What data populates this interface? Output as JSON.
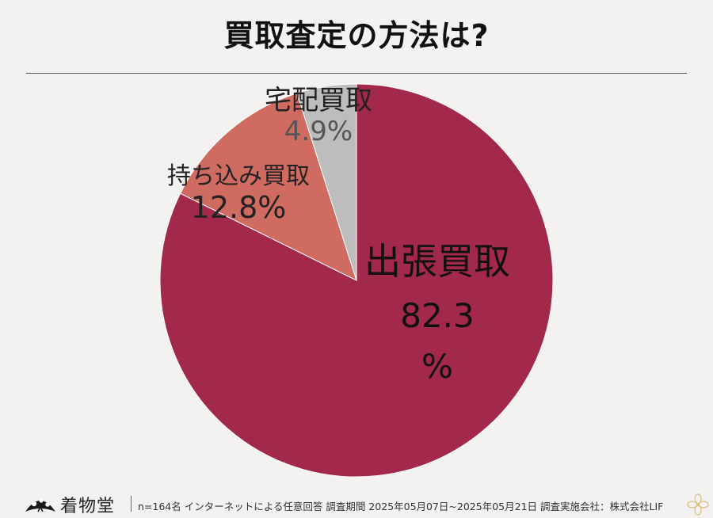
{
  "title": "買取査定の方法は?",
  "chart_data": {
    "type": "pie",
    "slices": [
      {
        "label": "出張買取",
        "value": 82.3,
        "display_value": "82.3",
        "unit": "%",
        "color": "#a3294a"
      },
      {
        "label": "持ち込み買取",
        "value": 12.8,
        "display_value": "12.8%",
        "unit": "",
        "color": "#cf6b60"
      },
      {
        "label": "宅配買取",
        "value": 4.9,
        "display_value": "4.9%",
        "unit": "",
        "color": "#bdbdbd"
      }
    ],
    "start_angle_deg": 0,
    "direction": "clockwise"
  },
  "labels": {
    "shucchou_name": "出張買取",
    "shucchou_value": "82.3",
    "shucchou_unit": "%",
    "mochikomi_name": "持ち込み買取",
    "mochikomi_value": "12.8%",
    "takuhai_name": "宅配買取",
    "takuhai_value": "4.9%"
  },
  "footer": {
    "logo_text": "着物堂",
    "note": "n=164名 インターネットによる任意回答 調査期間 2025年05月07日~2025年05月21日 調査実施会社：株式会社LIF"
  }
}
